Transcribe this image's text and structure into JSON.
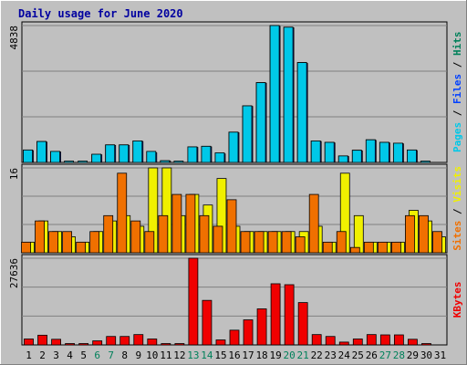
{
  "chart_data": {
    "title": "Daily usage for June 2020",
    "type": "bar",
    "x": [
      "1",
      "2",
      "3",
      "4",
      "5",
      "6",
      "7",
      "8",
      "9",
      "10",
      "11",
      "12",
      "13",
      "14",
      "15",
      "16",
      "17",
      "18",
      "19",
      "20",
      "21",
      "22",
      "23",
      "24",
      "25",
      "26",
      "27",
      "28",
      "29",
      "30",
      "31"
    ],
    "weekend_days": [
      "6",
      "7",
      "13",
      "14",
      "20",
      "21",
      "27",
      "28"
    ],
    "panels": [
      {
        "ymax_label": "4838",
        "ymax": 4838,
        "side_label": [
          {
            "text": "Pages",
            "color": "#00c8e8"
          },
          {
            "text": " / ",
            "color": "#000000"
          },
          {
            "text": "Files",
            "color": "#0040ff"
          },
          {
            "text": " / ",
            "color": "#000000"
          },
          {
            "text": "Hits",
            "color": "#00805a"
          }
        ],
        "series": [
          {
            "name": "Hits",
            "color": "#00805a",
            "values": [
              440,
              740,
              390,
              0,
              0,
              280,
              620,
              620,
              760,
              360,
              60,
              0,
              550,
              570,
              320,
              1070,
              2000,
              2820,
              4838,
              4780,
              3530,
              760,
              710,
              230,
              430,
              800,
              710,
              680,
              440,
              0,
              0
            ]
          },
          {
            "name": "Files",
            "color": "#0040ff",
            "values": [
              420,
              720,
              370,
              0,
              0,
              270,
              600,
              600,
              740,
              340,
              50,
              0,
              530,
              550,
              300,
              1050,
              1980,
              2800,
              4810,
              4760,
              3500,
              740,
              690,
              210,
              410,
              780,
              690,
              660,
              420,
              0,
              0
            ]
          },
          {
            "name": "Pages",
            "color": "#00c8e8",
            "values": [
              440,
              740,
              390,
              20,
              20,
              290,
              620,
              620,
              760,
              390,
              60,
              30,
              550,
              570,
              340,
              1070,
              2000,
              2820,
              4838,
              4780,
              3530,
              760,
              710,
              230,
              430,
              800,
              710,
              680,
              440,
              40,
              0
            ]
          }
        ]
      },
      {
        "ymax_label": "16",
        "ymax": 16,
        "side_label": [
          {
            "text": "Sites",
            "color": "#f07000"
          },
          {
            "text": " / ",
            "color": "#000000"
          },
          {
            "text": "Visits",
            "color": "#f0f000"
          }
        ],
        "series": [
          {
            "name": "Visits",
            "color": "#f0f000",
            "values": [
              2,
              6,
              4,
              3,
              2,
              4,
              6,
              7,
              5,
              16,
              16,
              7,
              11,
              9,
              14,
              5,
              4,
              4,
              4,
              4,
              4,
              5,
              2,
              15,
              7,
              2,
              2,
              2,
              8,
              6,
              3
            ]
          },
          {
            "name": "Sites",
            "color": "#f07000",
            "values": [
              2,
              6,
              4,
              4,
              2,
              4,
              7,
              15,
              6,
              4,
              7,
              11,
              11,
              7,
              5,
              10,
              4,
              4,
              4,
              4,
              3,
              11,
              2,
              4,
              1,
              2,
              2,
              2,
              7,
              7,
              4
            ]
          }
        ]
      },
      {
        "ymax_label": "27636",
        "ymax": 27636,
        "side_label": [
          {
            "text": "KBytes",
            "color": "#f00000"
          }
        ],
        "series": [
          {
            "name": "KBytes",
            "color": "#f00000",
            "values": [
              1900,
              3100,
              1800,
              300,
              200,
              1300,
              2700,
              2700,
              3300,
              1900,
              300,
              200,
              27636,
              14200,
              1600,
              4700,
              8000,
              11500,
              19500,
              19200,
              13500,
              3300,
              2700,
              900,
              1900,
              3300,
              3200,
              3200,
              1800,
              300,
              0
            ]
          }
        ]
      }
    ]
  }
}
